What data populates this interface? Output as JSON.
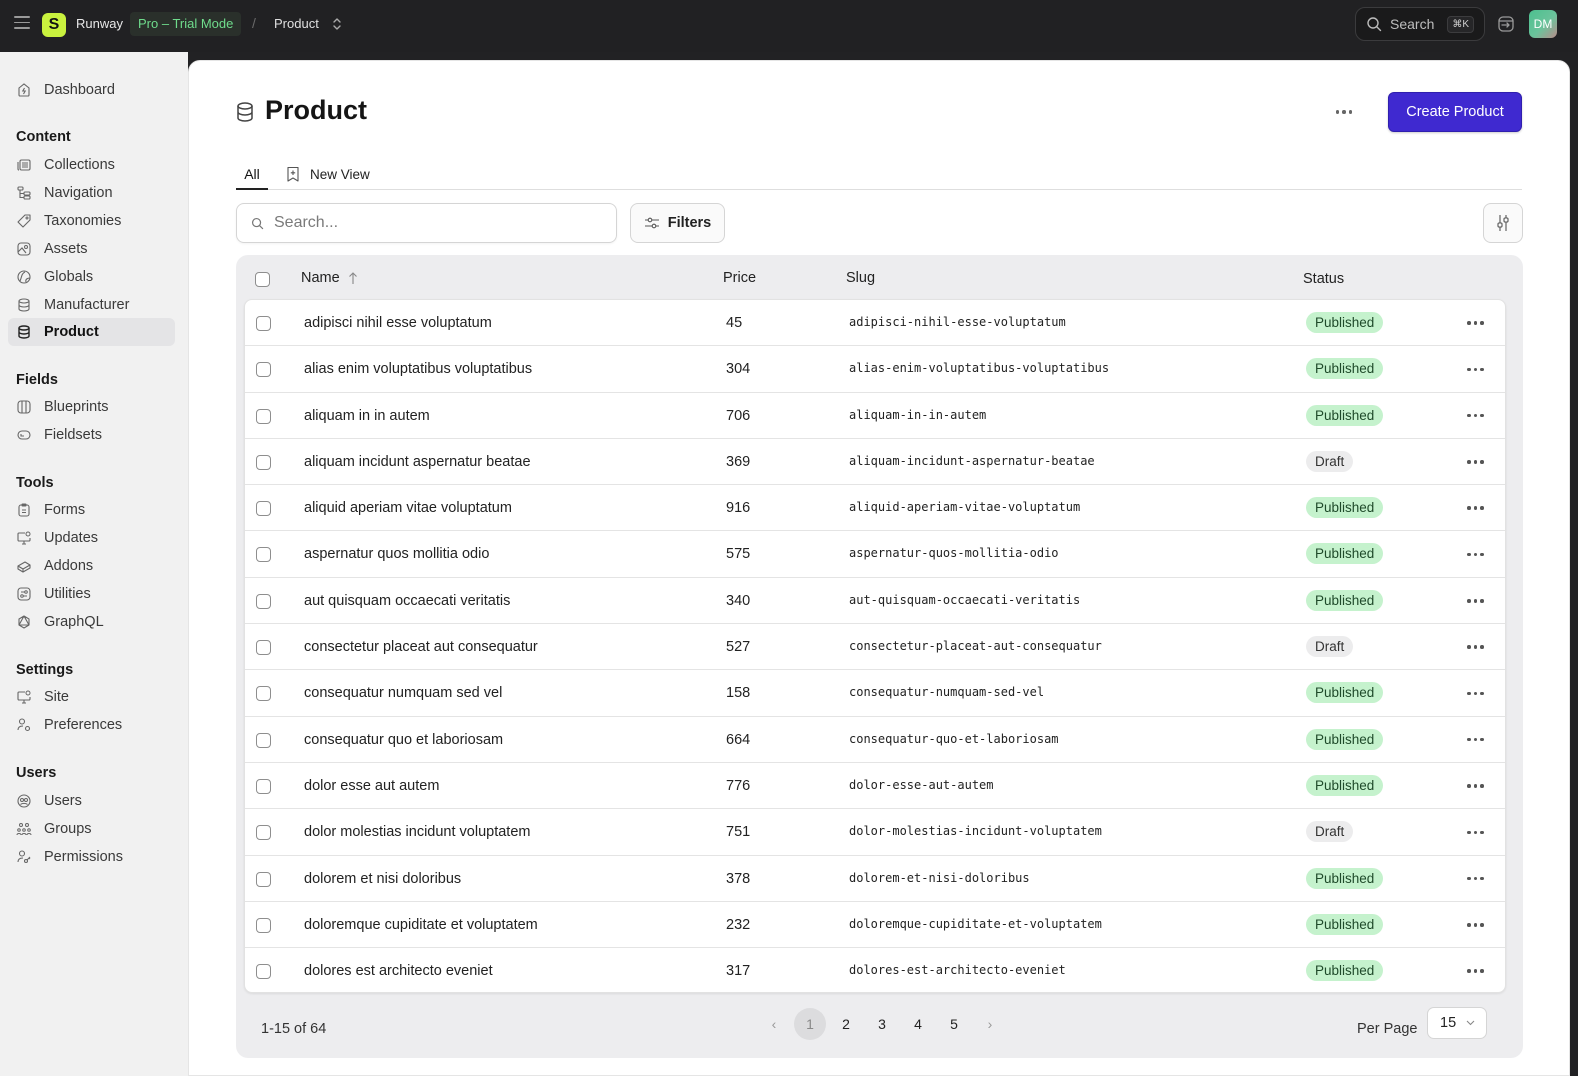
{
  "topbar": {
    "brand": "Runway",
    "plan_badge": "Pro – Trial Mode",
    "breadcrumb_sep": "/",
    "breadcrumb_current": "Product",
    "search_label": "Search",
    "search_shortcut": "⌘K",
    "avatar_initials": "DM"
  },
  "sidebar": {
    "dashboard": "Dashboard",
    "sections": [
      {
        "title": "Content",
        "items": [
          "Collections",
          "Navigation",
          "Taxonomies",
          "Assets",
          "Globals",
          "Manufacturer",
          "Product"
        ]
      },
      {
        "title": "Fields",
        "items": [
          "Blueprints",
          "Fieldsets"
        ]
      },
      {
        "title": "Tools",
        "items": [
          "Forms",
          "Updates",
          "Addons",
          "Utilities",
          "GraphQL"
        ]
      },
      {
        "title": "Settings",
        "items": [
          "Site",
          "Preferences"
        ]
      },
      {
        "title": "Users",
        "items": [
          "Users",
          "Groups",
          "Permissions"
        ]
      }
    ],
    "active_item": "Product"
  },
  "page": {
    "title": "Product",
    "create_button": "Create Product",
    "tabs": [
      {
        "label": "All",
        "active": true
      },
      {
        "label": "New View"
      }
    ],
    "search_placeholder": "Search...",
    "filters_button": "Filters"
  },
  "table": {
    "columns": {
      "name": "Name",
      "price": "Price",
      "slug": "Slug",
      "status": "Status"
    },
    "sort": {
      "column": "Name",
      "direction": "asc"
    },
    "rows": [
      {
        "name": "adipisci nihil esse voluptatum",
        "price": "45",
        "slug": "adipisci-nihil-esse-voluptatum",
        "status": "Published"
      },
      {
        "name": "alias enim voluptatibus voluptatibus",
        "price": "304",
        "slug": "alias-enim-voluptatibus-voluptatibus",
        "status": "Published"
      },
      {
        "name": "aliquam in in autem",
        "price": "706",
        "slug": "aliquam-in-in-autem",
        "status": "Published"
      },
      {
        "name": "aliquam incidunt aspernatur beatae",
        "price": "369",
        "slug": "aliquam-incidunt-aspernatur-beatae",
        "status": "Draft"
      },
      {
        "name": "aliquid aperiam vitae voluptatum",
        "price": "916",
        "slug": "aliquid-aperiam-vitae-voluptatum",
        "status": "Published"
      },
      {
        "name": "aspernatur quos mollitia odio",
        "price": "575",
        "slug": "aspernatur-quos-mollitia-odio",
        "status": "Published"
      },
      {
        "name": "aut quisquam occaecati veritatis",
        "price": "340",
        "slug": "aut-quisquam-occaecati-veritatis",
        "status": "Published"
      },
      {
        "name": "consectetur placeat aut consequatur",
        "price": "527",
        "slug": "consectetur-placeat-aut-consequatur",
        "status": "Draft"
      },
      {
        "name": "consequatur numquam sed vel",
        "price": "158",
        "slug": "consequatur-numquam-sed-vel",
        "status": "Published"
      },
      {
        "name": "consequatur quo et laboriosam",
        "price": "664",
        "slug": "consequatur-quo-et-laboriosam",
        "status": "Published"
      },
      {
        "name": "dolor esse aut autem",
        "price": "776",
        "slug": "dolor-esse-aut-autem",
        "status": "Published"
      },
      {
        "name": "dolor molestias incidunt voluptatem",
        "price": "751",
        "slug": "dolor-molestias-incidunt-voluptatem",
        "status": "Draft"
      },
      {
        "name": "dolorem et nisi doloribus",
        "price": "378",
        "slug": "dolorem-et-nisi-doloribus",
        "status": "Published"
      },
      {
        "name": "doloremque cupiditate et voluptatem",
        "price": "232",
        "slug": "doloremque-cupiditate-et-voluptatem",
        "status": "Published"
      },
      {
        "name": "dolores est architecto eveniet",
        "price": "317",
        "slug": "dolores-est-architecto-eveniet",
        "status": "Published"
      }
    ]
  },
  "pagination": {
    "summary": "1-15 of 64",
    "pages": [
      "1",
      "2",
      "3",
      "4",
      "5"
    ],
    "current_page": "1",
    "prev": "‹",
    "next": "›",
    "per_page_label": "Per Page",
    "per_page_value": "15"
  },
  "colors": {
    "accent": "#3f29d0",
    "logo": "#c9f23e",
    "published_bg": "#c5f2cd",
    "draft_bg": "#ececed",
    "trial_text": "#6fdc8c"
  }
}
